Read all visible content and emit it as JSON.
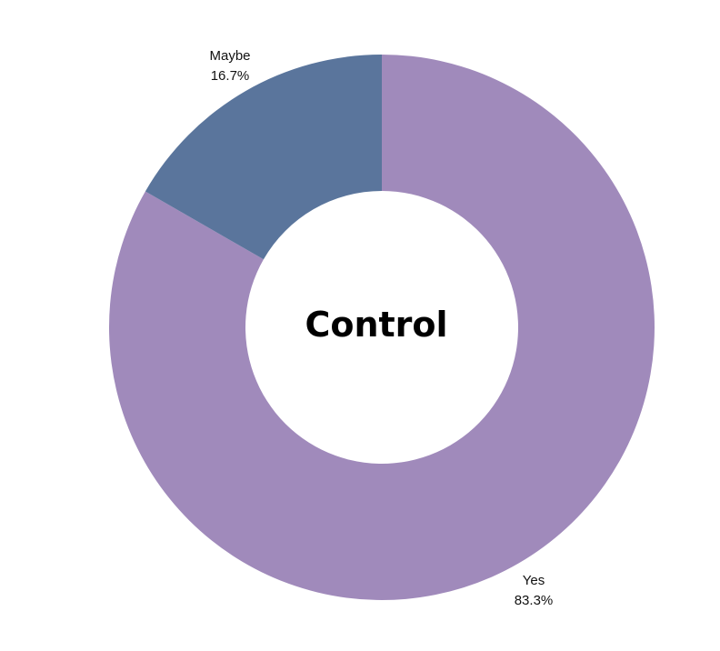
{
  "chart_data": {
    "type": "pie",
    "variant": "donut",
    "center_label": "Control",
    "slices": [
      {
        "label": "Yes",
        "value": 83.3,
        "value_label": "83.3%",
        "color": "#A08ABB"
      },
      {
        "label": "Maybe",
        "value": 16.7,
        "value_label": "16.7%",
        "color": "#5A759C"
      }
    ],
    "start_angle": "12 o'clock",
    "direction": "clockwise",
    "legend": "none (labels outside slices)"
  }
}
